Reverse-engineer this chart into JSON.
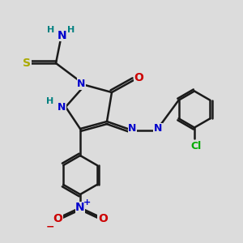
{
  "bg_color": "#dcdcdc",
  "bond_color": "#1a1a1a",
  "bond_width": 1.8,
  "atom_colors": {
    "N": "#0000cc",
    "O": "#cc0000",
    "S": "#aaaa00",
    "Cl": "#00aa00",
    "H": "#008080",
    "C": "#1a1a1a"
  },
  "font_size": 9
}
